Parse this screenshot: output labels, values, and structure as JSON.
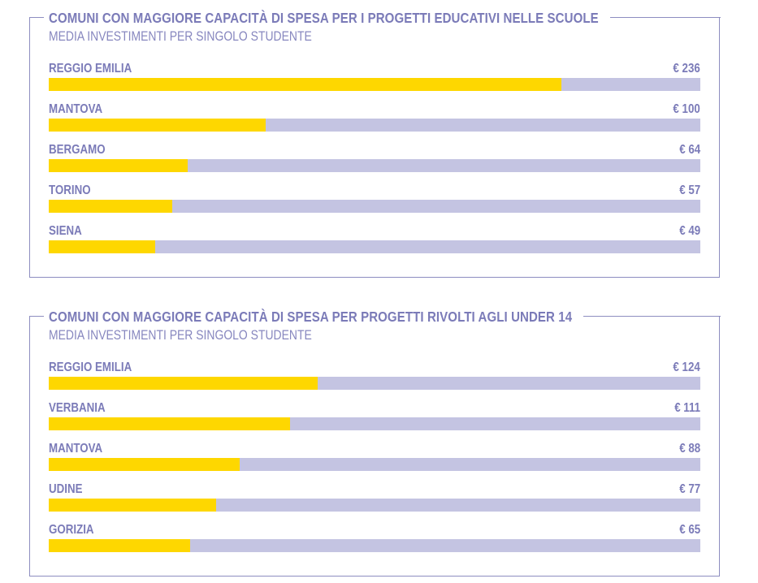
{
  "chart_data": [
    {
      "type": "bar",
      "title": "COMUNI CON MAGGIORE CAPACITÀ DI SPESA PER I PROGETTI EDUCATIVI NELLE SCUOLE",
      "subtitle": "MEDIA INVESTIMENTI PER SINGOLO STUDENTE",
      "scale_max": 300,
      "categories": [
        "REGGIO EMILIA",
        "MANTOVA",
        "BERGAMO",
        "TORINO",
        "SIENA"
      ],
      "values": [
        236,
        100,
        64,
        57,
        49
      ],
      "value_labels": [
        "€ 236",
        "€ 100",
        "€ 64",
        "€ 57",
        "€ 49"
      ]
    },
    {
      "type": "bar",
      "title": "COMUNI CON MAGGIORE CAPACITÀ DI SPESA PER PROGETTI RIVOLTI AGLI UNDER 14",
      "subtitle": "MEDIA INVESTIMENTI PER SINGOLO STUDENTE",
      "scale_max": 300,
      "categories": [
        "REGGIO EMILIA",
        "VERBANIA",
        "MANTOVA",
        "UDINE",
        "GORIZIA"
      ],
      "values": [
        124,
        111,
        88,
        77,
        65
      ],
      "value_labels": [
        "€ 124",
        "€ 111",
        "€ 88",
        "€ 77",
        "€ 65"
      ]
    }
  ],
  "colors": {
    "fill": "#fed700",
    "track": "#c4c4e2",
    "text": "#7b7bb8",
    "border": "#8d8dc0"
  }
}
